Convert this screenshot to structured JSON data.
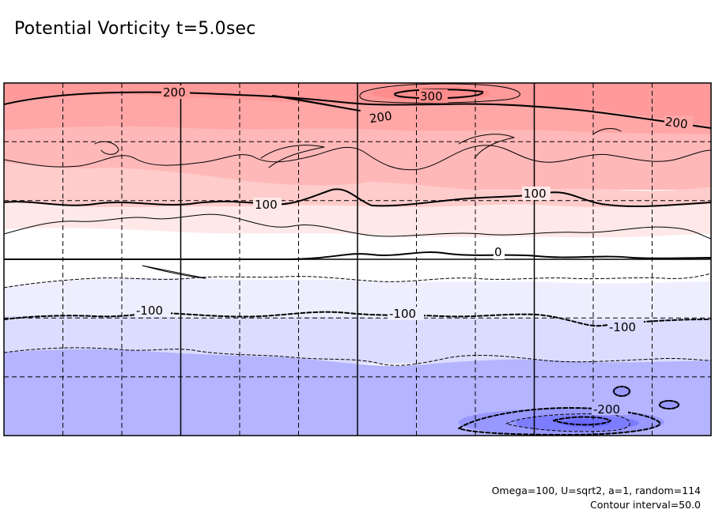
{
  "title": "Potential Vorticity t=5.0sec",
  "chart_data": {
    "type": "contour",
    "field": "potential vorticity",
    "time": "t=5.0sec",
    "contour_interval": 50.0,
    "bands": [
      {
        "lower": 250,
        "upper": 300,
        "color": "#ff9696"
      },
      {
        "lower": 200,
        "upper": 250,
        "color": "#ffa0a0"
      },
      {
        "lower": 150,
        "upper": 200,
        "color": "#ffb5b5"
      },
      {
        "lower": 100,
        "upper": 150,
        "color": "#ffcccc"
      },
      {
        "lower": 50,
        "upper": 100,
        "color": "#ffe8e8"
      },
      {
        "lower": 0,
        "upper": 50,
        "color": "#ffffff"
      },
      {
        "lower": -50,
        "upper": 0,
        "color": "#ffffff"
      },
      {
        "lower": -100,
        "upper": -50,
        "color": "#eeeeff"
      },
      {
        "lower": -150,
        "upper": -100,
        "color": "#dcdcff"
      },
      {
        "lower": -200,
        "upper": -150,
        "color": "#b4b4ff"
      },
      {
        "lower": -250,
        "upper": -200,
        "color": "#9696ff"
      },
      {
        "lower": -300,
        "upper": -250,
        "color": "#7878ff"
      }
    ],
    "contour_labels": [
      "200",
      "300",
      "200",
      "200",
      "100",
      "100",
      "0",
      "-100",
      "-100",
      "-100",
      "-200"
    ],
    "grid": "dashed",
    "major_lines": "solid, 4 columns x 2 rows"
  },
  "notes": {
    "params": "Omega=100, U=sqrt2, a=1, random=114",
    "interval": "Contour interval=50.0"
  }
}
